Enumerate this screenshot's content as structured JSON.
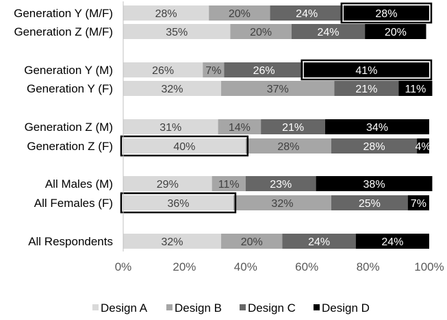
{
  "chart_data": {
    "type": "bar",
    "orientation": "horizontal",
    "stacked": "percent",
    "title": "",
    "xlabel": "",
    "ylabel": "",
    "xlim": [
      0,
      100
    ],
    "x_ticks": [
      "0%",
      "20%",
      "40%",
      "60%",
      "80%",
      "100%"
    ],
    "grid": false,
    "legend_position": "bottom",
    "categories": [
      "Generation Y (M/F)",
      "Generation Z (M/F)",
      "Generation Y (M)",
      "Generation Y (F)",
      "Generation Z (M)",
      "Generation Z (F)",
      "All Males (M)",
      "All Females (F)",
      "All Respondents"
    ],
    "series": [
      {
        "name": "Design A",
        "color": "#d9d9d9",
        "label_color": "#404040",
        "values": [
          28,
          35,
          26,
          32,
          31,
          40,
          29,
          36,
          32
        ]
      },
      {
        "name": "Design B",
        "color": "#a6a6a6",
        "label_color": "#404040",
        "values": [
          20,
          20,
          7,
          37,
          14,
          28,
          11,
          32,
          20
        ]
      },
      {
        "name": "Design C",
        "color": "#666666",
        "label_color": "#ffffff",
        "values": [
          24,
          24,
          26,
          21,
          21,
          28,
          23,
          25,
          24
        ]
      },
      {
        "name": "Design D",
        "color": "#000000",
        "label_color": "#ffffff",
        "values": [
          28,
          20,
          41,
          11,
          34,
          4,
          38,
          7,
          24
        ]
      }
    ],
    "data_labels": [
      [
        "28%",
        "20%",
        "24%",
        "28%"
      ],
      [
        "35%",
        "20%",
        "24%",
        "20%"
      ],
      [
        "26%",
        "7%",
        "26%",
        "41%"
      ],
      [
        "32%",
        "37%",
        "21%",
        "11%"
      ],
      [
        "31%",
        "14%",
        "21%",
        "34%"
      ],
      [
        "40%",
        "28%",
        "28%",
        "4%"
      ],
      [
        "29%",
        "11%",
        "23%",
        "38%"
      ],
      [
        "36%",
        "32%",
        "25%",
        "7%"
      ],
      [
        "32%",
        "20%",
        "24%",
        "24%"
      ]
    ],
    "highlighted": [
      {
        "category": "Generation Y (M/F)",
        "series": "Design D"
      },
      {
        "category": "Generation Y (M)",
        "series": "Design D"
      },
      {
        "category": "Generation Z (F)",
        "series": "Design A"
      },
      {
        "category": "All Females (F)",
        "series": "Design A"
      }
    ]
  }
}
